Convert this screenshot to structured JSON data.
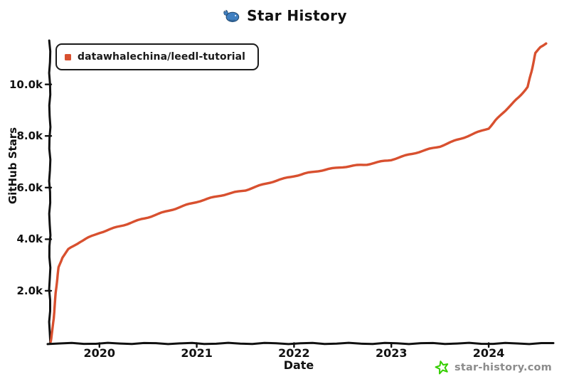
{
  "header": {
    "icon": "whale-logo",
    "title": "Star History"
  },
  "legend": {
    "label": "datawhalechina/leedl-tutorial"
  },
  "watermark": {
    "icon": "star-doodle",
    "text": "star-history.com",
    "icon_color": "#35CE00",
    "text_color": "#8C8C8C"
  },
  "colors": {
    "series_red": "#D8502F",
    "axis_black": "#111111",
    "whale_blue": "#3F7FC1"
  },
  "chart_data": {
    "type": "line",
    "title": "Star History",
    "xlabel": "Date",
    "ylabel": "GitHub Stars",
    "grid": false,
    "legend_position": "top-left",
    "xlim": [
      2019.49,
      2024.65
    ],
    "ylim": [
      0,
      11700
    ],
    "x_ticks": [
      {
        "value": 2020,
        "label": "2020"
      },
      {
        "value": 2021,
        "label": "2021"
      },
      {
        "value": 2022,
        "label": "2022"
      },
      {
        "value": 2023,
        "label": "2023"
      },
      {
        "value": 2024,
        "label": "2024"
      }
    ],
    "y_ticks": [
      {
        "value": 2000,
        "label": "2.0k"
      },
      {
        "value": 4000,
        "label": "4.0k"
      },
      {
        "value": 6000,
        "label": "6.0k"
      },
      {
        "value": 8000,
        "label": "8.0k"
      },
      {
        "value": 10000,
        "label": "10.0k"
      }
    ],
    "series": [
      {
        "name": "datawhalechina/leedl-tutorial",
        "color": "#D8502F",
        "points": [
          [
            2019.5,
            30
          ],
          [
            2019.53,
            900
          ],
          [
            2019.55,
            1900
          ],
          [
            2019.58,
            2900
          ],
          [
            2019.62,
            3300
          ],
          [
            2019.68,
            3600
          ],
          [
            2019.8,
            3900
          ],
          [
            2019.95,
            4170
          ],
          [
            2020.0,
            4250
          ],
          [
            2020.25,
            4550
          ],
          [
            2020.5,
            4850
          ],
          [
            2020.75,
            5150
          ],
          [
            2021.0,
            5450
          ],
          [
            2021.25,
            5700
          ],
          [
            2021.5,
            5900
          ],
          [
            2021.75,
            6200
          ],
          [
            2022.0,
            6450
          ],
          [
            2022.25,
            6650
          ],
          [
            2022.5,
            6800
          ],
          [
            2022.75,
            6900
          ],
          [
            2023.0,
            7080
          ],
          [
            2023.25,
            7350
          ],
          [
            2023.5,
            7600
          ],
          [
            2023.75,
            7950
          ],
          [
            2024.0,
            8300
          ],
          [
            2024.07,
            8600
          ],
          [
            2024.2,
            9100
          ],
          [
            2024.31,
            9500
          ],
          [
            2024.4,
            9900
          ],
          [
            2024.44,
            10500
          ],
          [
            2024.48,
            11200
          ],
          [
            2024.53,
            11450
          ],
          [
            2024.59,
            11600
          ]
        ]
      }
    ]
  }
}
